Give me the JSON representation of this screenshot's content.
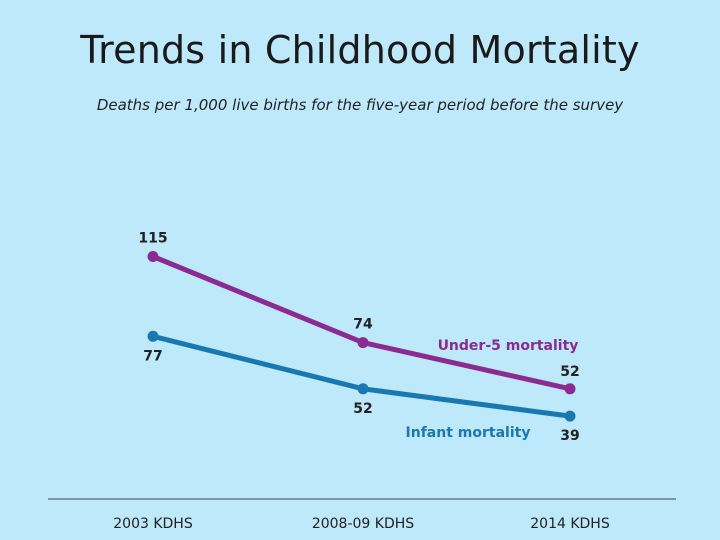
{
  "chart_data": {
    "type": "line",
    "title": "Trends in Childhood Mortality",
    "subtitle": "Deaths per 1,000 live births for the five-year period before the survey",
    "categories": [
      "2003 KDHS",
      "2008-09 KDHS",
      "2014 KDHS"
    ],
    "xlabel": "",
    "ylabel": "",
    "ylim": [
      0,
      200
    ],
    "grid": false,
    "series": [
      {
        "name": "Under-5 mortality",
        "values": [
          115,
          74,
          52
        ],
        "color": "#8b2a90"
      },
      {
        "name": "Infant mortality",
        "values": [
          77,
          52,
          39
        ],
        "color": "#1a78b0"
      }
    ]
  }
}
